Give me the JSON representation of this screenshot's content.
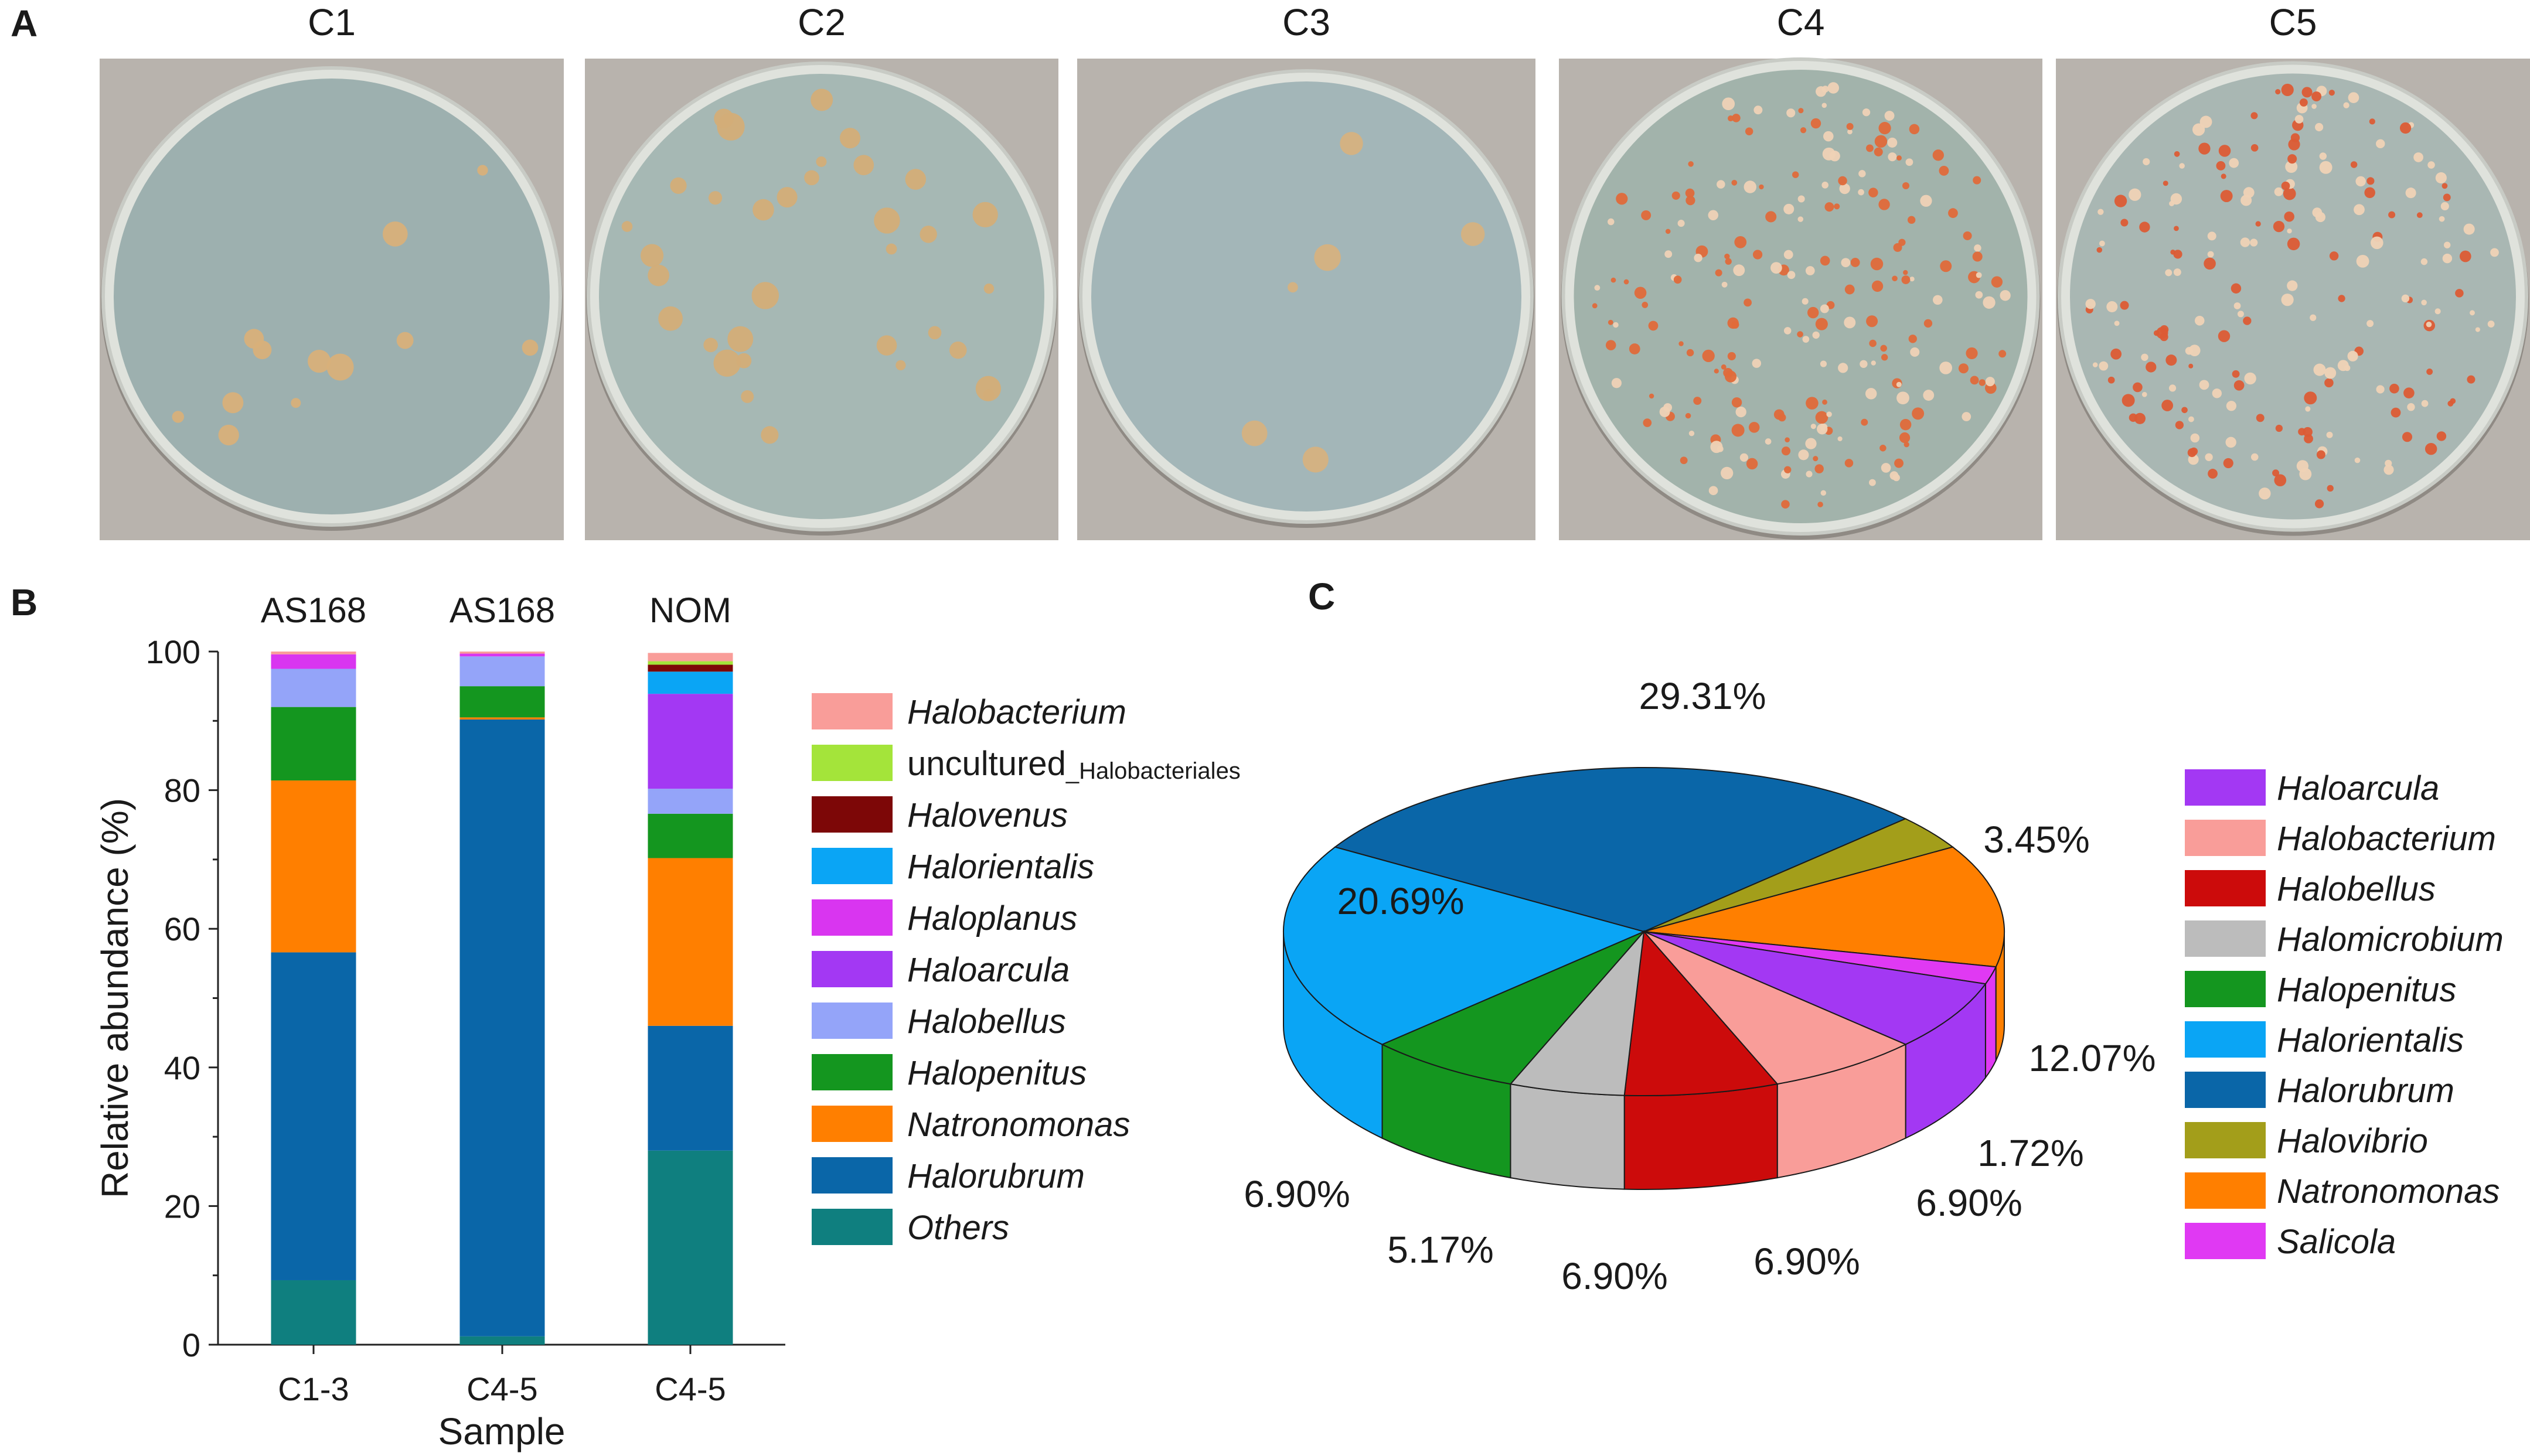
{
  "panel_labels": {
    "a": "A",
    "b": "B",
    "c": "C"
  },
  "plates": [
    {
      "label": "C1",
      "dish_color": "#9db0af",
      "colony_color": "#d8b07a",
      "n": 12,
      "red": false
    },
    {
      "label": "C2",
      "dish_color": "#a6b8b4",
      "colony_color": "#d3ad78",
      "n": 34,
      "red": true
    },
    {
      "label": "C3",
      "dish_color": "#a3b6b8",
      "colony_color": "#d6b27f",
      "n": 6,
      "red": false
    },
    {
      "label": "C4",
      "dish_color": "#a2b3ab",
      "colony_color": "#e06a3a",
      "n": 220,
      "red": true
    },
    {
      "label": "C5",
      "dish_color": "#a9b7b3",
      "colony_color": "#dc5b35",
      "n": 200,
      "red": true
    }
  ],
  "chart_data": [
    {
      "type": "bar",
      "stacked": true,
      "categories": [
        "C1-3",
        "C4-5",
        "C4-5"
      ],
      "group_labels": [
        "AS168",
        "AS168",
        "NOM"
      ],
      "xlabel": "Sample",
      "ylabel": "Relative abundance (%)",
      "ylim": [
        0,
        100
      ],
      "yticks": [
        0,
        20,
        40,
        60,
        80,
        100
      ],
      "series": [
        {
          "name": "Others",
          "color": "#0f7f7f",
          "values": [
            9.3,
            1.2,
            28.0
          ]
        },
        {
          "name": "Halorubrum",
          "color": "#0a66a8",
          "values": [
            47.3,
            89.0,
            18.0
          ]
        },
        {
          "name": "Natronomonas",
          "color": "#ff7f00",
          "values": [
            24.8,
            0.3,
            24.2
          ]
        },
        {
          "name": "Halopenitus",
          "color": "#14961f",
          "values": [
            10.6,
            4.5,
            6.4
          ]
        },
        {
          "name": "Halobellus",
          "color": "#94a4f9",
          "values": [
            5.5,
            4.3,
            3.6
          ]
        },
        {
          "name": "Haloarcula",
          "color": "#a338f3",
          "values": [
            0.0,
            0.0,
            13.7
          ]
        },
        {
          "name": "Haloplanus",
          "color": "#d935f0",
          "values": [
            2.1,
            0.4,
            0.0
          ]
        },
        {
          "name": "Halorientalis",
          "color": "#0aa5f5",
          "values": [
            0.0,
            0.0,
            3.2
          ]
        },
        {
          "name": "Halovenus",
          "color": "#7d0707",
          "values": [
            0.0,
            0.0,
            1.0
          ]
        },
        {
          "name": "uncultured",
          "name_sub": "_Halobacteriales",
          "color": "#a4e43a",
          "values": [
            0.0,
            0.0,
            0.5
          ]
        },
        {
          "name": "Halobacterium",
          "color": "#f99d99",
          "values": [
            0.4,
            0.3,
            1.2
          ]
        }
      ],
      "legend_order": [
        "Halobacterium",
        "uncultured",
        "Halovenus",
        "Halorientalis",
        "Haloplanus",
        "Haloarcula",
        "Halobellus",
        "Halopenitus",
        "Natronomonas",
        "Halorubrum",
        "Others"
      ]
    },
    {
      "type": "pie",
      "slices": [
        {
          "name": "Halorubrum",
          "value": 29.31,
          "label": "29.31%",
          "color": "#0a66a8"
        },
        {
          "name": "Halovibrio",
          "value": 3.45,
          "label": "3.45%",
          "color": "#a39e1a"
        },
        {
          "name": "Natronomonas",
          "value": 12.07,
          "label": "12.07%",
          "color": "#ff7f00"
        },
        {
          "name": "Salicola",
          "value": 1.72,
          "label": "1.72%",
          "color": "#e039f3"
        },
        {
          "name": "Haloarcula",
          "value": 6.9,
          "label": "6.90%",
          "color": "#a338f3"
        },
        {
          "name": "Halobacterium",
          "value": 6.9,
          "label": "6.90%",
          "color": "#f99d99"
        },
        {
          "name": "Halobellus",
          "value": 6.9,
          "label": "6.90%",
          "color": "#cc0b0b"
        },
        {
          "name": "Halomicrobium",
          "value": 5.17,
          "label": "5.17%",
          "color": "#bcbcbc"
        },
        {
          "name": "Halopenitus",
          "value": 6.9,
          "label": "6.90%",
          "color": "#14961f"
        },
        {
          "name": "Halorientalis",
          "value": 20.69,
          "label": "20.69%",
          "color": "#0aa5f5"
        }
      ],
      "legend_order": [
        "Haloarcula",
        "Halobacterium",
        "Halobellus",
        "Halomicrobium",
        "Halopenitus",
        "Halorientalis",
        "Halorubrum",
        "Halovibrio",
        "Natronomonas",
        "Salicola"
      ]
    }
  ]
}
